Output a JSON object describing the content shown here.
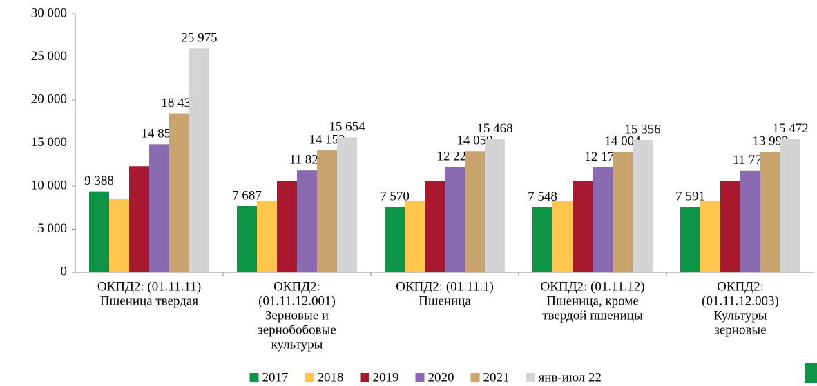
{
  "chart_data": {
    "type": "bar",
    "categories": [
      [
        "ОКПД2: (01.11.11)",
        "Пшеница твердая"
      ],
      [
        "ОКПД2:",
        "(01.11.12.001)",
        "Зерновые и",
        "зернобобовые",
        "культуры"
      ],
      [
        "ОКПД2: (01.11.1)",
        "Пшеница"
      ],
      [
        "ОКПД2: (01.11.12)",
        "Пшеница, кроме",
        "твердой пшеницы"
      ],
      [
        "ОКПД2:",
        "(01.11.12.003)",
        "Культуры",
        "зерновые"
      ]
    ],
    "series": [
      {
        "name": "2017",
        "color": "#0e9447",
        "values": [
          9388,
          7687,
          7570,
          7548,
          7591
        ],
        "value_labels": [
          "9 388",
          "7 687",
          "7 570",
          "7 548",
          "7 591"
        ]
      },
      {
        "name": "2018",
        "color": "#ffc54d",
        "values": [
          8500,
          8300,
          8300,
          8300,
          8300
        ]
      },
      {
        "name": "2019",
        "color": "#a8182f",
        "values": [
          12300,
          10600,
          10600,
          10600,
          10600
        ]
      },
      {
        "name": "2020",
        "color": "#8a6bb1",
        "values": [
          14853,
          11829,
          12221,
          12176,
          11779
        ],
        "value_labels": [
          "14 853",
          "11 829",
          "12 221",
          "12 176",
          "11 779"
        ]
      },
      {
        "name": "2021",
        "color": "#c9a46f",
        "values": [
          18433,
          14152,
          14059,
          14004,
          13993
        ],
        "value_labels": [
          "18 433",
          "14 152",
          "14 059",
          "14 004",
          "13 993"
        ]
      },
      {
        "name": "янв-июл 22",
        "color": "#d4d4d7",
        "values": [
          25975,
          15654,
          15468,
          15356,
          15472
        ],
        "value_labels": [
          "25 975",
          "15 654",
          "15 468",
          "15 356",
          "15 472"
        ]
      }
    ],
    "ylim": [
      0,
      30000
    ],
    "yticks": [
      {
        "value": 0,
        "label": "0"
      },
      {
        "value": 5000,
        "label": "5 000"
      },
      {
        "value": 10000,
        "label": "10 000"
      },
      {
        "value": 15000,
        "label": "15 000"
      },
      {
        "value": 20000,
        "label": "20 000"
      },
      {
        "value": 25000,
        "label": "25 000"
      },
      {
        "value": 30000,
        "label": "30 000"
      }
    ],
    "legend": "bottom"
  }
}
